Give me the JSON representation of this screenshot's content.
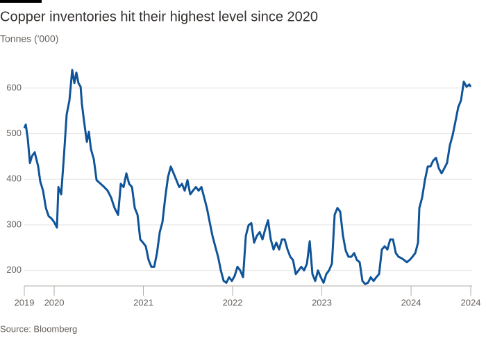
{
  "chart_data": {
    "type": "line",
    "title": "Copper inventories hit their highest level since 2020",
    "subtitle": "Tonnes ('000)",
    "source": "Source: Bloomberg",
    "x": [
      2019.665,
      2019.681,
      2019.704,
      2019.728,
      2019.751,
      2019.782,
      2019.821,
      2019.844,
      2019.875,
      2019.907,
      2019.938,
      2019.969,
      2020.0,
      2020.031,
      2020.047,
      2020.078,
      2020.109,
      2020.14,
      2020.171,
      2020.202,
      2020.226,
      2020.249,
      2020.272,
      2020.296,
      2020.311,
      2020.335,
      2020.366,
      2020.389,
      2020.412,
      2020.444,
      2020.475,
      2020.521,
      2020.56,
      2020.599,
      2020.638,
      2020.677,
      2020.716,
      2020.747,
      2020.778,
      2020.809,
      2020.84,
      2020.872,
      2020.903,
      2020.934,
      2020.965,
      2020.996,
      2021.027,
      2021.058,
      2021.089,
      2021.121,
      2021.152,
      2021.183,
      2021.214,
      2021.245,
      2021.276,
      2021.307,
      2021.339,
      2021.37,
      2021.401,
      2021.432,
      2021.463,
      2021.494,
      2021.525,
      2021.556,
      2021.588,
      2021.619,
      2021.65,
      2021.681,
      2021.712,
      2021.743,
      2021.774,
      2021.805,
      2021.837,
      2021.868,
      2021.899,
      2021.93,
      2021.961,
      2021.992,
      2022.023,
      2022.054,
      2022.085,
      2022.117,
      2022.148,
      2022.179,
      2022.21,
      2022.241,
      2022.272,
      2022.303,
      2022.335,
      2022.366,
      2022.397,
      2022.428,
      2022.459,
      2022.49,
      2022.521,
      2022.552,
      2022.584,
      2022.615,
      2022.646,
      2022.677,
      2022.708,
      2022.739,
      2022.77,
      2022.801,
      2022.833,
      2022.864,
      2022.895,
      2022.926,
      2022.957,
      2022.988,
      2023.019,
      2023.05,
      2023.081,
      2023.113,
      2023.144,
      2023.175,
      2023.206,
      2023.237,
      2023.268,
      2023.299,
      2023.331,
      2023.362,
      2023.393,
      2023.424,
      2023.455,
      2023.486,
      2023.517,
      2023.548,
      2023.58,
      2023.611,
      2023.642,
      2023.673,
      2023.704,
      2023.735,
      2023.766,
      2023.797,
      2023.829,
      2023.86,
      2023.891,
      2023.922,
      2023.953,
      2023.984,
      2024.016,
      2024.047,
      2024.078,
      2024.093,
      2024.124,
      2024.155,
      2024.187,
      2024.218,
      2024.249,
      2024.28,
      2024.311,
      2024.342,
      2024.373,
      2024.404,
      2024.435,
      2024.467,
      2024.498,
      2024.529,
      2024.56,
      2024.591,
      2024.622,
      2024.653,
      2024.669
    ],
    "series": [
      {
        "color": "#0f5499",
        "values": [
          512,
          520,
          489,
          436,
          451,
          459,
          428,
          395,
          375,
          337,
          319,
          314,
          306,
          294,
          383,
          367,
          451,
          542,
          573,
          640,
          611,
          634,
          611,
          603,
          565,
          527,
          482,
          504,
          466,
          444,
          398,
          390,
          383,
          375,
          360,
          337,
          322,
          390,
          383,
          413,
          390,
          383,
          337,
          322,
          268,
          261,
          253,
          223,
          208,
          208,
          238,
          284,
          306,
          360,
          405,
          428,
          413,
          398,
          383,
          390,
          375,
          398,
          367,
          375,
          383,
          375,
          383,
          360,
          337,
          306,
          276,
          253,
          230,
          200,
          177,
          173,
          185,
          177,
          188,
          208,
          200,
          185,
          276,
          299,
          304,
          261,
          276,
          284,
          268,
          291,
          310,
          268,
          246,
          261,
          246,
          268,
          268,
          246,
          230,
          223,
          192,
          200,
          208,
          200,
          215,
          264,
          192,
          177,
          200,
          185,
          173,
          192,
          200,
          215,
          322,
          337,
          329,
          276,
          243,
          230,
          230,
          238,
          223,
          218,
          177,
          170,
          173,
          185,
          177,
          185,
          192,
          246,
          253,
          246,
          268,
          268,
          238,
          230,
          227,
          223,
          218,
          223,
          230,
          238,
          261,
          337,
          360,
          398,
          428,
          428,
          441,
          447,
          424,
          413,
          424,
          436,
          474,
          497,
          527,
          558,
          573,
          614,
          603,
          608,
          603
        ]
      }
    ],
    "xlim": [
      2019.665,
      2024.669
    ],
    "xticks": [
      {
        "value": 2019.665,
        "label": "2019"
      },
      2020,
      2021,
      2022,
      2023,
      2024,
      {
        "value": 2024.669,
        "label": "2024"
      }
    ],
    "ylim": [
      166,
      641
    ],
    "yticks": [
      200,
      300,
      400,
      500,
      600
    ],
    "grid": true
  }
}
